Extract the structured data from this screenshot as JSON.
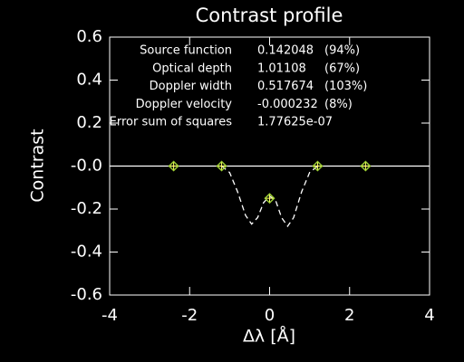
{
  "chart_data": {
    "type": "line",
    "title": "Contrast profile",
    "x_label": "Δλ [Å]",
    "y_label": "Contrast",
    "xlim": [
      -4,
      4
    ],
    "xticks": [
      -4,
      -2,
      0,
      2,
      4
    ],
    "ylim": [
      -0.6,
      0.6
    ],
    "yticks": [
      -0.6,
      -0.4,
      -0.2,
      {
        "value": 0,
        "label": "-0.0"
      },
      0.2,
      0.4,
      0.6
    ],
    "series": [
      {
        "x": [
          -4,
          4
        ],
        "values": [
          0,
          0
        ],
        "color": "#ffffff",
        "style": "solid"
      },
      {
        "x": [
          -1.2,
          -1.0,
          -0.8,
          -0.6,
          -0.45,
          -0.3,
          -0.15,
          0,
          0.15,
          0.3,
          0.45,
          0.6,
          0.8,
          1.0,
          1.2
        ],
        "values": [
          0,
          -0.03,
          -0.12,
          -0.23,
          -0.27,
          -0.24,
          -0.17,
          -0.14,
          -0.16,
          -0.24,
          -0.28,
          -0.24,
          -0.12,
          -0.03,
          0
        ],
        "color": "#ffffff",
        "style": "dashed"
      },
      {
        "x": [
          -2.4,
          -1.2,
          0,
          1.2,
          2.4
        ],
        "values": [
          0,
          0,
          -0.15,
          0,
          0
        ],
        "color": "#9acd32",
        "style": "diamond"
      }
    ],
    "annotations": [
      {
        "label": "Source function",
        "value": "0.142048",
        "percent": "(94%)"
      },
      {
        "label": "Optical depth",
        "value": "1.01108",
        "percent": "(67%)"
      },
      {
        "label": "Doppler width",
        "value": "0.517674",
        "percent": "(103%)"
      },
      {
        "label": "Doppler velocity",
        "value": "-0.000232",
        "percent": "(8%)"
      },
      {
        "label": "Error sum of squares",
        "value": "1.77625e-07"
      }
    ]
  }
}
